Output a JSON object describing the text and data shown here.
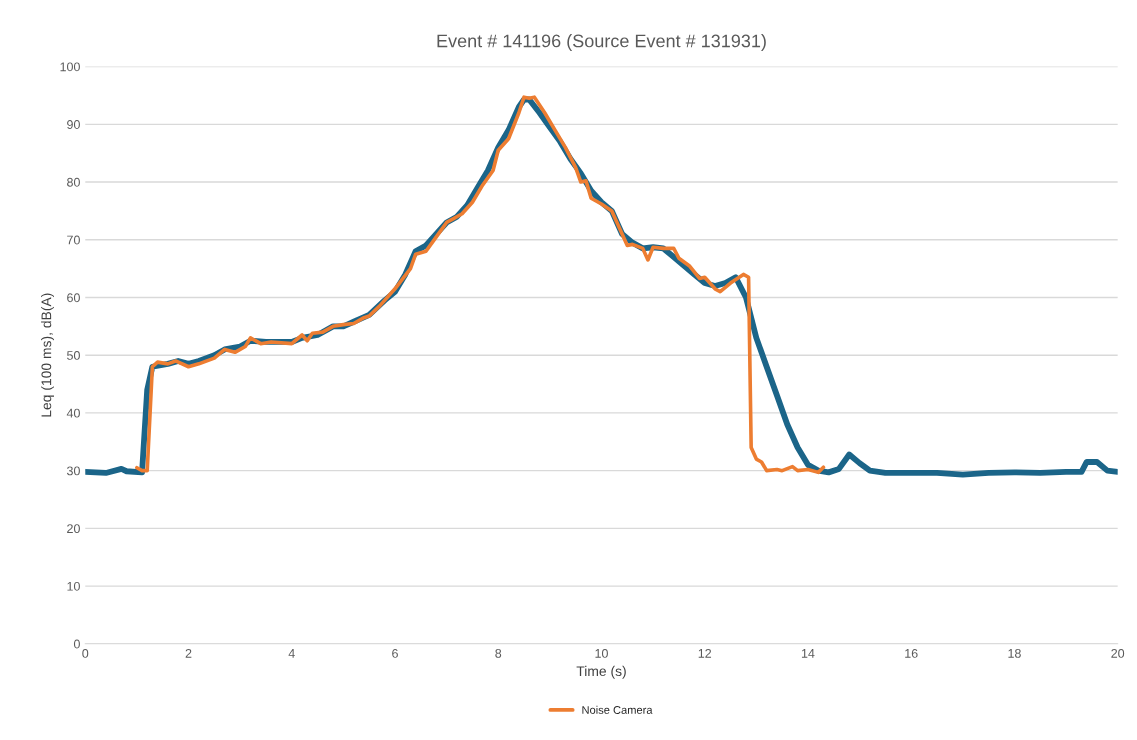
{
  "chart_data": {
    "type": "line",
    "title": "Event # 141196 (Source Event # 131931)",
    "xlabel": "Time (s)",
    "ylabel": "Leq (100 ms), dB(A)",
    "xlim": [
      0,
      20
    ],
    "xticks": [
      0,
      2,
      4,
      6,
      8,
      10,
      12,
      14,
      16,
      18,
      20
    ],
    "ylim": [
      0,
      100
    ],
    "yticks": [
      0,
      10,
      20,
      30,
      40,
      50,
      60,
      70,
      80,
      90,
      100
    ],
    "grid": "y",
    "legend": "bottom",
    "marker": "none",
    "line_style": "solid",
    "series": [
      {
        "color": "#1b6589",
        "x": [
          0,
          0.4,
          0.7,
          0.8,
          1.1,
          1.2,
          1.3,
          1.6,
          1.8,
          2,
          2.2,
          2.5,
          2.7,
          3,
          3.2,
          3.5,
          4,
          4.2,
          4.5,
          4.8,
          5,
          5.2,
          5.5,
          5.8,
          6,
          6.2,
          6.4,
          6.6,
          6.8,
          7,
          7.2,
          7.4,
          7.6,
          7.8,
          8,
          8.2,
          8.4,
          8.5,
          8.6,
          8.8,
          9,
          9.2,
          9.4,
          9.6,
          9.8,
          10,
          10.2,
          10.4,
          10.6,
          10.8,
          11,
          11.2,
          11.4,
          11.6,
          11.8,
          12,
          12.2,
          12.4,
          12.6,
          12.8,
          13,
          13.2,
          13.4,
          13.6,
          13.8,
          14,
          14.2,
          14.4,
          14.6,
          14.8,
          15,
          15.2,
          15.5,
          16,
          16.5,
          17,
          17.5,
          18,
          18.5,
          19,
          19.3,
          19.4,
          19.6,
          19.8,
          20
        ],
        "values": [
          29.8,
          29.6,
          30.3,
          29.9,
          29.7,
          44,
          48,
          48.5,
          49,
          48.5,
          49,
          50,
          51,
          51.5,
          52.5,
          52.3,
          52.3,
          53,
          53.5,
          55,
          55,
          55.8,
          57,
          59.5,
          61,
          64,
          68,
          69,
          71,
          73,
          74,
          76,
          79,
          82,
          86,
          89,
          93,
          94.3,
          94.3,
          92,
          89.5,
          87,
          84,
          81.5,
          78.5,
          76.5,
          75,
          71,
          69.5,
          68.5,
          68.7,
          68.5,
          67,
          65.5,
          64,
          62.5,
          62,
          62.5,
          63.5,
          60,
          53,
          48,
          43,
          38,
          34,
          31,
          30,
          29.7,
          30.3,
          32.8,
          31.3,
          30,
          29.6,
          29.6,
          29.6,
          29.3,
          29.6,
          29.7,
          29.6,
          29.8,
          29.8,
          31.5,
          31.5,
          30,
          29.8
        ]
      },
      {
        "name": "Noise Camera",
        "color": "#ed7d31",
        "x": [
          1.0,
          1.1,
          1.2,
          1.3,
          1.4,
          1.6,
          1.75,
          2,
          2.2,
          2.5,
          2.7,
          2.9,
          3.1,
          3.2,
          3.4,
          3.6,
          4,
          4.2,
          4.3,
          4.4,
          4.6,
          4.8,
          5,
          5.2,
          5.4,
          5.5,
          5.7,
          6,
          6.3,
          6.4,
          6.6,
          6.8,
          7,
          7.1,
          7.3,
          7.5,
          7.7,
          7.9,
          8,
          8.2,
          8.4,
          8.5,
          8.6,
          8.7,
          8.9,
          9.1,
          9.3,
          9.5,
          9.6,
          9.7,
          9.8,
          10,
          10.2,
          10.4,
          10.5,
          10.6,
          10.8,
          10.9,
          11,
          11.2,
          11.4,
          11.5,
          11.7,
          11.9,
          12,
          12.2,
          12.3,
          12.5,
          12.75,
          12.85,
          12.9,
          13.0,
          13.1,
          13.2,
          13.4,
          13.5,
          13.7,
          13.8,
          14.0,
          14.2,
          14.3
        ],
        "values": [
          30.5,
          30,
          30,
          48,
          48.8,
          48.5,
          49,
          48,
          48.5,
          49.5,
          51,
          50.5,
          51.5,
          53,
          52,
          52.3,
          52,
          53.5,
          52.5,
          53.8,
          54,
          55,
          55.3,
          55.5,
          56.5,
          56.8,
          58.5,
          61.5,
          65,
          67.5,
          68,
          70.5,
          73,
          73.5,
          74.5,
          76.5,
          79.5,
          82,
          85.5,
          87.5,
          92,
          94.7,
          94.5,
          94.7,
          92,
          89,
          86,
          82.5,
          80,
          80.2,
          77.2,
          76.2,
          75,
          71,
          69,
          69.2,
          68.5,
          66.5,
          68.7,
          68.5,
          68.5,
          66.8,
          65.5,
          63.3,
          63.5,
          61.5,
          61,
          62.5,
          64,
          63.5,
          34,
          32,
          31.5,
          30,
          30.2,
          30,
          30.7,
          30,
          30.2,
          29.7,
          30.6
        ]
      }
    ]
  }
}
